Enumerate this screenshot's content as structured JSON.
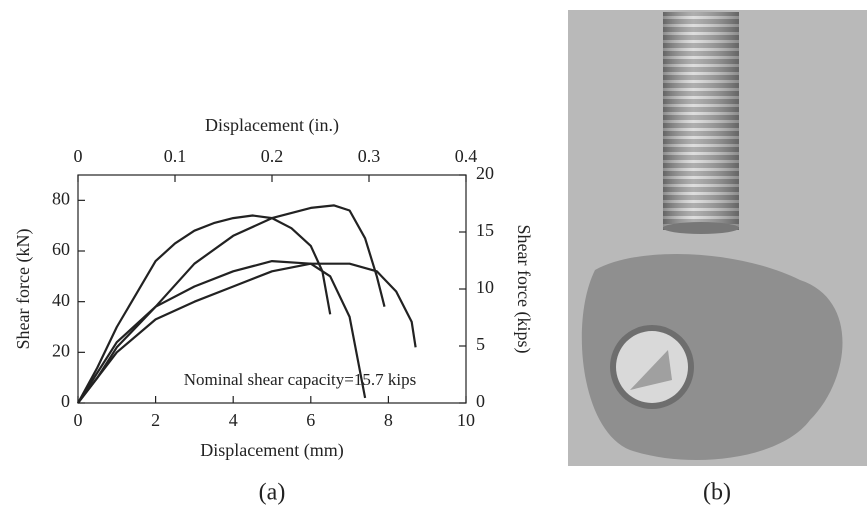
{
  "chart_data": {
    "type": "line",
    "xlabel": "Displacement (mm)",
    "x2label": "Displacement (in.)",
    "ylabel": "Shear force (kN)",
    "y2label": "Shear force (kips)",
    "annotation": "Nominal shear capacity=15.7 kips",
    "xlim": [
      0,
      10
    ],
    "xticks": [
      0,
      2,
      4,
      6,
      8,
      10
    ],
    "x2lim": [
      0,
      0.4
    ],
    "x2ticks": [
      0,
      0.1,
      0.2,
      0.3,
      0.4
    ],
    "ylim": [
      0,
      90
    ],
    "yticks": [
      0,
      20,
      40,
      60,
      80
    ],
    "y2lim": [
      0,
      20
    ],
    "y2ticks": [
      0,
      5,
      10,
      15,
      20
    ],
    "series": [
      {
        "color": "#222222",
        "x": [
          0,
          0.5,
          1,
          2,
          3,
          4,
          5,
          6,
          6.6,
          7,
          7.4,
          7.7,
          7.9
        ],
        "values": [
          0,
          10,
          22,
          38,
          55,
          66,
          73,
          77,
          78,
          76,
          65,
          50,
          38
        ]
      },
      {
        "color": "#222222",
        "x": [
          0,
          0.5,
          1,
          1.5,
          2,
          2.5,
          3,
          3.5,
          4,
          4.5,
          5,
          5.5,
          6,
          6.3,
          6.5
        ],
        "values": [
          0,
          14,
          30,
          43,
          56,
          63,
          68,
          71,
          73,
          74,
          73,
          69,
          62,
          52,
          35
        ]
      },
      {
        "color": "#222222",
        "x": [
          0,
          0.5,
          1,
          2,
          3,
          4,
          5,
          6,
          6.5,
          7,
          7.4
        ],
        "values": [
          0,
          12,
          24,
          38,
          46,
          52,
          56,
          55,
          50,
          34,
          2
        ]
      },
      {
        "color": "#222222",
        "x": [
          0,
          0.5,
          1,
          2,
          3,
          4,
          5,
          6,
          7,
          7.7,
          8.2,
          8.6,
          8.7
        ],
        "values": [
          0,
          10,
          20,
          33,
          40,
          46,
          52,
          55,
          55,
          52,
          44,
          32,
          22
        ]
      }
    ]
  },
  "panel_labels": [
    "(a)",
    "(b)"
  ]
}
